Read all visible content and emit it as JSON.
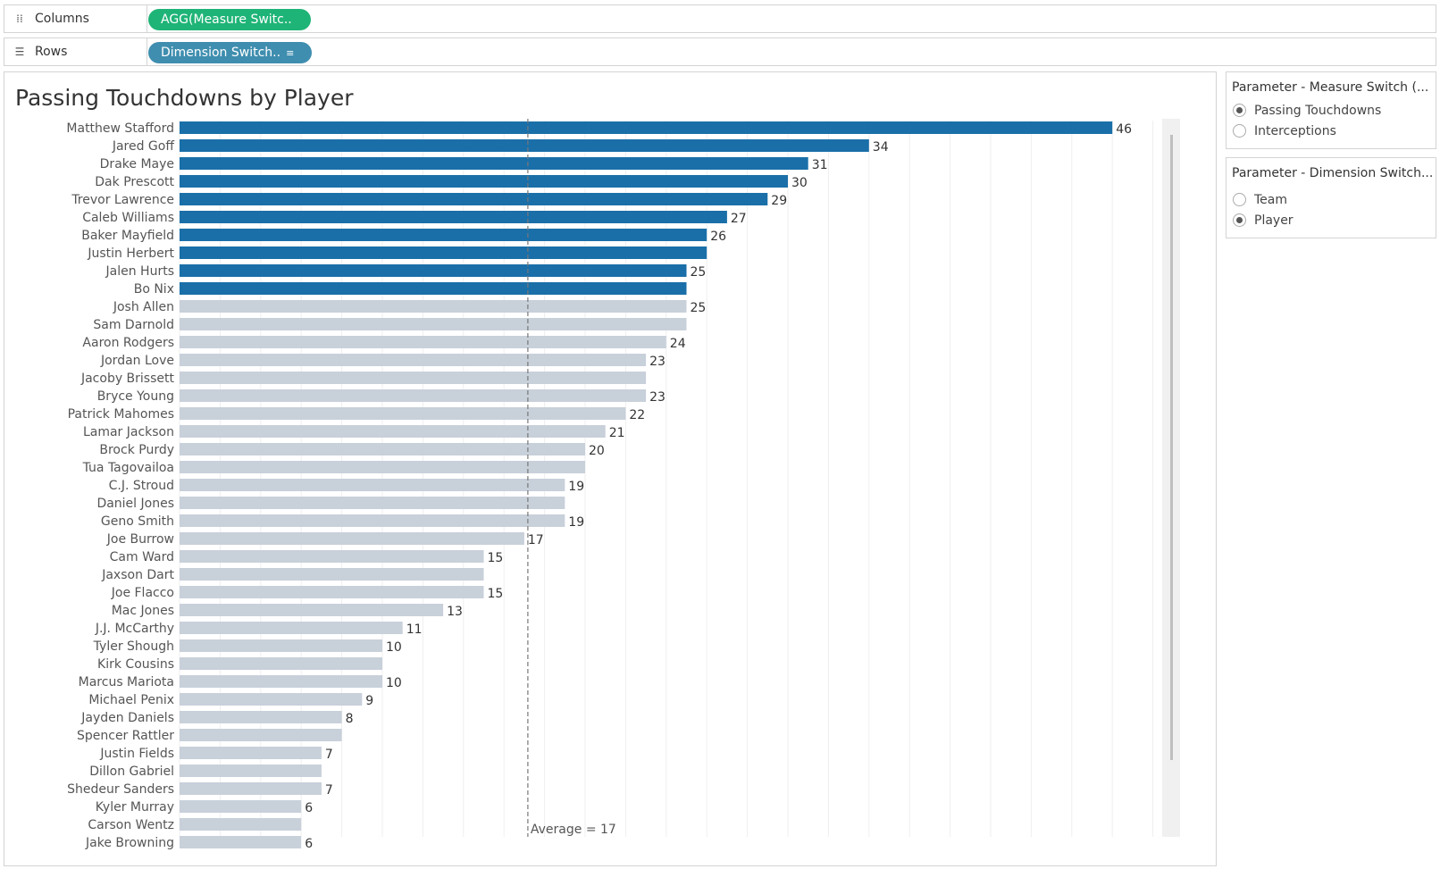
{
  "shelves": {
    "columns": {
      "label": "Columns",
      "icon": "columns-icon",
      "pill": "AGG(Measure Switc.."
    },
    "rows": {
      "label": "Rows",
      "icon": "rows-icon",
      "pill": "Dimension Switch.."
    }
  },
  "parameters": [
    {
      "title": "Parameter - Measure Switch (...",
      "options": [
        {
          "label": "Passing Touchdowns",
          "selected": true
        },
        {
          "label": "Interceptions",
          "selected": false
        }
      ]
    },
    {
      "title": "Parameter - Dimension Switch...",
      "options": [
        {
          "label": "Team",
          "selected": false
        },
        {
          "label": "Player",
          "selected": true
        }
      ]
    }
  ],
  "chart_data": {
    "type": "bar",
    "orientation": "horizontal",
    "title": "Passing Touchdowns by Player",
    "xlim": [
      0,
      50
    ],
    "grid": true,
    "highlight_color": "#1a6fa8",
    "base_color": "#c8d0da",
    "reference_line": {
      "value": 17,
      "label": "Average = 17"
    },
    "bars": [
      {
        "player": "Matthew Stafford",
        "value": 46,
        "label": "46",
        "highlight": true
      },
      {
        "player": "Jared Goff",
        "value": 34,
        "label": "34",
        "highlight": true
      },
      {
        "player": "Drake Maye",
        "value": 31,
        "label": "31",
        "highlight": true
      },
      {
        "player": "Dak Prescott",
        "value": 30,
        "label": "30",
        "highlight": true
      },
      {
        "player": "Trevor Lawrence",
        "value": 29,
        "label": "29",
        "highlight": true
      },
      {
        "player": "Caleb Williams",
        "value": 27,
        "label": "27",
        "highlight": true
      },
      {
        "player": "Baker Mayfield",
        "value": 26,
        "label": "26",
        "highlight": true
      },
      {
        "player": "Justin Herbert",
        "value": 26,
        "label": "",
        "highlight": true
      },
      {
        "player": "Jalen Hurts",
        "value": 25,
        "label": "25",
        "highlight": true
      },
      {
        "player": "Bo Nix",
        "value": 25,
        "label": "",
        "highlight": true
      },
      {
        "player": "Josh Allen",
        "value": 25,
        "label": "25",
        "highlight": false
      },
      {
        "player": "Sam Darnold",
        "value": 25,
        "label": "",
        "highlight": false
      },
      {
        "player": "Aaron Rodgers",
        "value": 24,
        "label": "24",
        "highlight": false
      },
      {
        "player": "Jordan Love",
        "value": 23,
        "label": "23",
        "highlight": false
      },
      {
        "player": "Jacoby Brissett",
        "value": 23,
        "label": "",
        "highlight": false
      },
      {
        "player": "Bryce Young",
        "value": 23,
        "label": "23",
        "highlight": false
      },
      {
        "player": "Patrick Mahomes",
        "value": 22,
        "label": "22",
        "highlight": false
      },
      {
        "player": "Lamar Jackson",
        "value": 21,
        "label": "21",
        "highlight": false
      },
      {
        "player": "Brock Purdy",
        "value": 20,
        "label": "20",
        "highlight": false
      },
      {
        "player": "Tua Tagovailoa",
        "value": 20,
        "label": "",
        "highlight": false
      },
      {
        "player": "C.J. Stroud",
        "value": 19,
        "label": "19",
        "highlight": false
      },
      {
        "player": "Daniel Jones",
        "value": 19,
        "label": "",
        "highlight": false
      },
      {
        "player": "Geno Smith",
        "value": 19,
        "label": "19",
        "highlight": false
      },
      {
        "player": "Joe Burrow",
        "value": 17,
        "label": "17",
        "highlight": false
      },
      {
        "player": "Cam Ward",
        "value": 15,
        "label": "15",
        "highlight": false
      },
      {
        "player": "Jaxson Dart",
        "value": 15,
        "label": "",
        "highlight": false
      },
      {
        "player": "Joe Flacco",
        "value": 15,
        "label": "15",
        "highlight": false
      },
      {
        "player": "Mac Jones",
        "value": 13,
        "label": "13",
        "highlight": false
      },
      {
        "player": "J.J. McCarthy",
        "value": 11,
        "label": "11",
        "highlight": false
      },
      {
        "player": "Tyler Shough",
        "value": 10,
        "label": "10",
        "highlight": false
      },
      {
        "player": "Kirk Cousins",
        "value": 10,
        "label": "",
        "highlight": false
      },
      {
        "player": "Marcus Mariota",
        "value": 10,
        "label": "10",
        "highlight": false
      },
      {
        "player": "Michael Penix",
        "value": 9,
        "label": "9",
        "highlight": false
      },
      {
        "player": "Jayden Daniels",
        "value": 8,
        "label": "8",
        "highlight": false
      },
      {
        "player": "Spencer Rattler",
        "value": 8,
        "label": "",
        "highlight": false
      },
      {
        "player": "Justin Fields",
        "value": 7,
        "label": "7",
        "highlight": false
      },
      {
        "player": "Dillon Gabriel",
        "value": 7,
        "label": "",
        "highlight": false
      },
      {
        "player": "Shedeur Sanders",
        "value": 7,
        "label": "7",
        "highlight": false
      },
      {
        "player": "Kyler Murray",
        "value": 6,
        "label": "6",
        "highlight": false
      },
      {
        "player": "Carson Wentz",
        "value": 6,
        "label": "",
        "highlight": false
      },
      {
        "player": "Jake Browning",
        "value": 6,
        "label": "6",
        "highlight": false
      }
    ]
  }
}
